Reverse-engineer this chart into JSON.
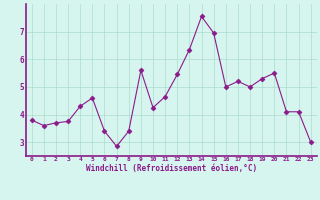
{
  "x": [
    0,
    1,
    2,
    3,
    4,
    5,
    6,
    7,
    8,
    9,
    10,
    11,
    12,
    13,
    14,
    15,
    16,
    17,
    18,
    19,
    20,
    21,
    22,
    23
  ],
  "y": [
    3.8,
    3.6,
    3.7,
    3.75,
    4.3,
    4.6,
    3.4,
    2.85,
    3.4,
    5.6,
    4.25,
    4.65,
    5.45,
    6.35,
    7.55,
    6.95,
    5.0,
    5.2,
    5.0,
    5.3,
    5.5,
    4.1,
    4.1,
    3.0
  ],
  "line_color": "#8B1A8B",
  "marker": "D",
  "marker_size": 2.5,
  "bg_color": "#D6F5EE",
  "grid_color": "#AADDCC",
  "xlabel": "Windchill (Refroidissement éolien,°C)",
  "xlabel_color": "#8B1A8B",
  "tick_color": "#8B1A8B",
  "axis_color": "#8B1A8B",
  "ylim": [
    2.5,
    8.0
  ],
  "yticks": [
    3,
    4,
    5,
    6,
    7
  ],
  "xticks": [
    0,
    1,
    2,
    3,
    4,
    5,
    6,
    7,
    8,
    9,
    10,
    11,
    12,
    13,
    14,
    15,
    16,
    17,
    18,
    19,
    20,
    21,
    22,
    23
  ]
}
